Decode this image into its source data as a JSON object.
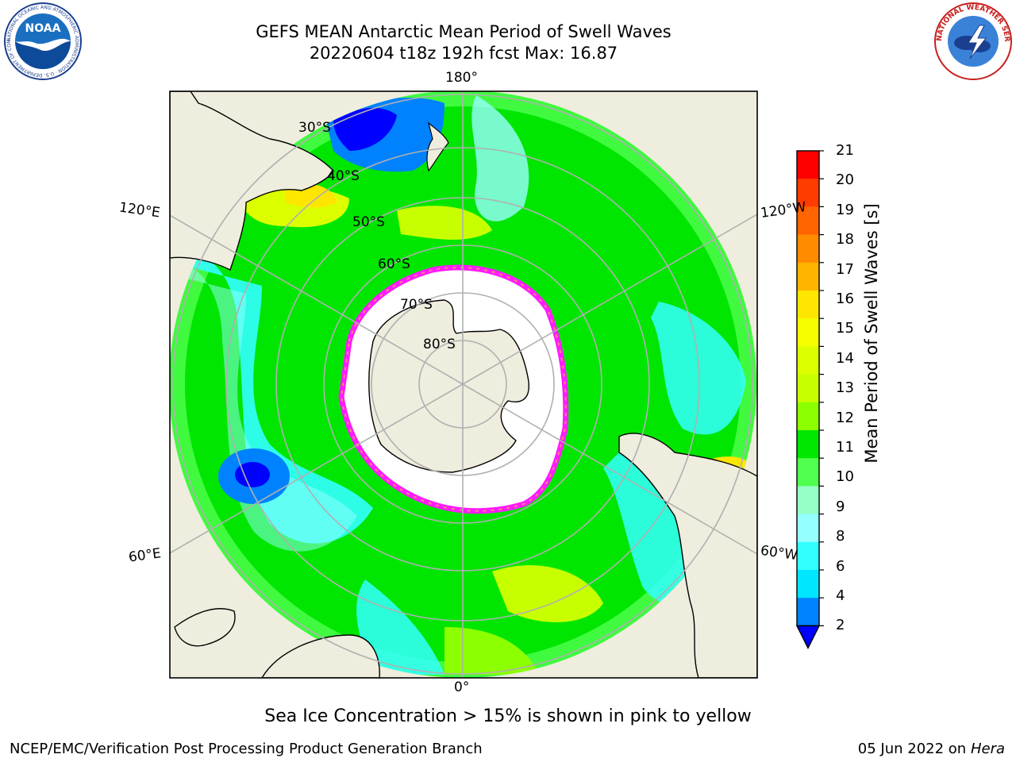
{
  "title": {
    "line1": "GEFS MEAN Antarctic Mean Period of Swell Waves",
    "line2": "20220604 t18z 192h fcst   Max: 16.87"
  },
  "logos": {
    "left": "noaa-logo",
    "right": "nws-logo",
    "left_text": "NOAA",
    "left_ring_text": "NATIONAL OCEANIC AND ATMOSPHERIC ADMINISTRATION · U.S. DEPARTMENT OF COMMERCE",
    "right_ring_text": "NATIONAL WEATHER SERVICE"
  },
  "map": {
    "projection": "south-polar-stereographic",
    "longitude_labels": {
      "top": "180°",
      "bottom": "0°",
      "upper_left": "120°E",
      "upper_right": "120°W",
      "lower_left": "60°E",
      "lower_right": "60°W"
    },
    "latitude_labels": [
      "30°S",
      "40°S",
      "50°S",
      "60°S",
      "70°S",
      "80°S"
    ],
    "colors": {
      "land": "#efedde",
      "ice": "#ffffff",
      "ice_edge": "#ff1aff",
      "ice_edge_inner": "#ffb347",
      "grid": "#b0b0b0"
    },
    "regions": [
      {
        "name": "high-period-band",
        "value": 13
      },
      {
        "name": "low-period-patch",
        "value": 3
      }
    ]
  },
  "colorbar": {
    "label": "Mean Period of Swell Waves [s]",
    "ticks": [
      "21",
      "20",
      "19",
      "18",
      "17",
      "16",
      "15",
      "14",
      "13",
      "12",
      "11",
      "10",
      "9",
      "8",
      "6",
      "4",
      "2"
    ],
    "colors": [
      "#ff0000",
      "#ff3c00",
      "#ff6400",
      "#ff8c00",
      "#ffb400",
      "#ffe600",
      "#f5ff00",
      "#dcff00",
      "#c8ff00",
      "#8cff00",
      "#00e600",
      "#50ff50",
      "#96ffc8",
      "#96ffff",
      "#32ffff",
      "#00e6ff",
      "#0082ff"
    ],
    "extend_color": "#0000ff"
  },
  "caption": "Sea Ice Concentration > 15% is shown in pink to yellow",
  "footer": {
    "left": "NCEP/EMC/Verification Post Processing Product Generation Branch",
    "right_date": "05 Jun 2022 on",
    "right_host": "Hera"
  }
}
